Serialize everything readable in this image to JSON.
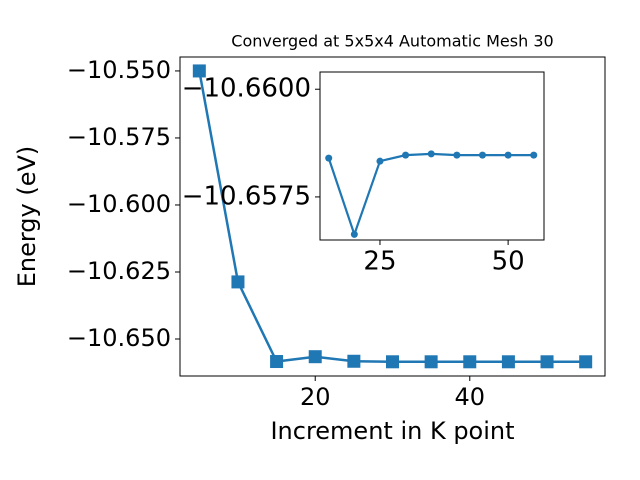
{
  "chart_data": [
    {
      "type": "line",
      "title": "Converged at 5x5x4 Automatic Mesh 30",
      "x_label": "Increment in K point",
      "y_label": "Energy (eV)",
      "x": [
        5,
        10,
        15,
        20,
        25,
        30,
        35,
        40,
        45,
        50,
        55
      ],
      "series": [
        {
          "color": "#1f77b4",
          "marker": "square",
          "values": [
            -10.55,
            -10.6287,
            -10.6584,
            -10.6566,
            -10.6583,
            -10.6585,
            -10.6585,
            -10.6585,
            -10.6585,
            -10.6585,
            -10.6585
          ]
        }
      ],
      "xlim": [
        2.5,
        57.5
      ],
      "xticks": [
        20,
        40
      ],
      "ylim": [
        -10.6638,
        -10.5448
      ],
      "yticks": [
        {
          "value": -10.65,
          "label": "−10.650"
        },
        {
          "value": -10.625,
          "label": "−10.625"
        },
        {
          "value": -10.6,
          "label": "−10.600"
        },
        {
          "value": -10.575,
          "label": "−10.575"
        },
        {
          "value": -10.55,
          "label": "−10.550"
        }
      ]
    },
    {
      "type": "line",
      "x": [
        15,
        20,
        25,
        30,
        35,
        40,
        45,
        50,
        55
      ],
      "series": [
        {
          "color": "#1f77b4",
          "marker": "circle",
          "values": [
            -10.6584,
            -10.65663,
            -10.65833,
            -10.65847,
            -10.6585,
            -10.65847,
            -10.65847,
            -10.65847,
            -10.65847
          ]
        }
      ],
      "xlim": [
        13.3,
        57.0
      ],
      "xticks": [
        25,
        50
      ],
      "ylim": [
        -10.6565,
        -10.6604
      ],
      "yticks": [
        {
          "value": -10.66,
          "label": "−10.6600"
        },
        {
          "value": -10.6575,
          "label": "−10.6575"
        }
      ]
    }
  ]
}
